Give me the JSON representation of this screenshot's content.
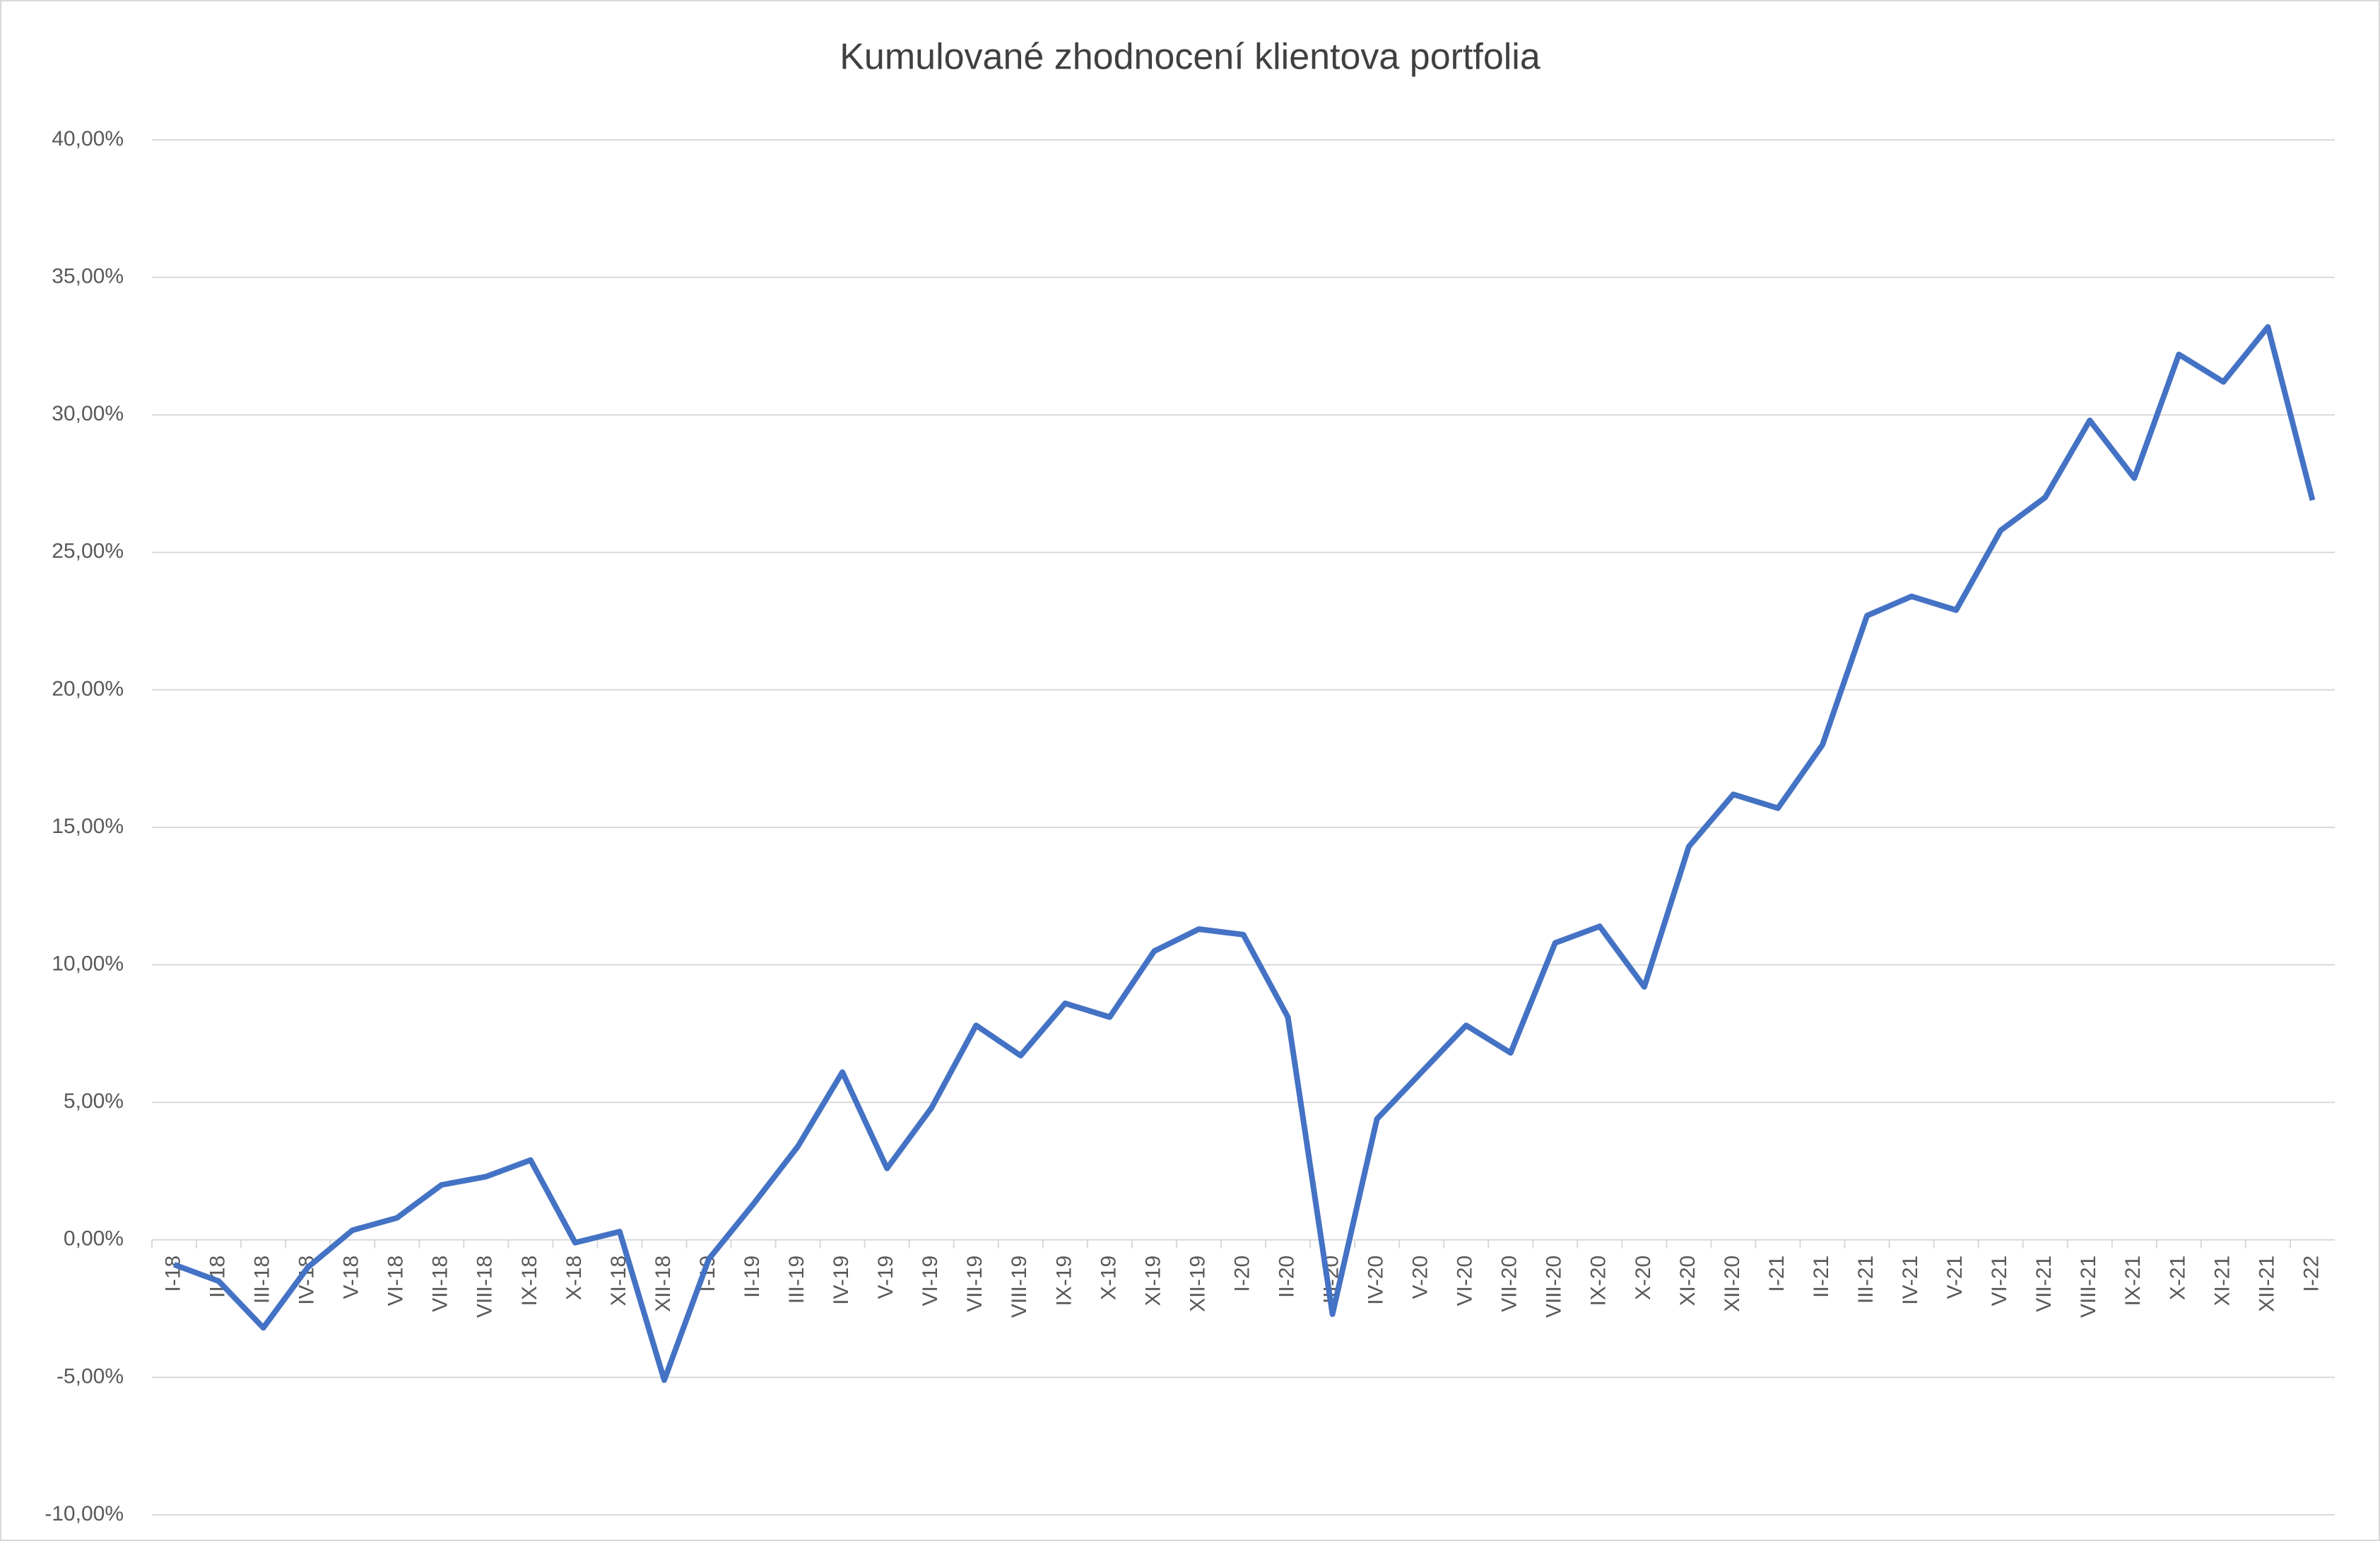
{
  "chart_data": {
    "type": "line",
    "title": "Kumulované zhodnocení klientova portfolia",
    "categories": [
      "I-18",
      "II-18",
      "III-18",
      "IV-18",
      "V-18",
      "VI-18",
      "VII-18",
      "VIII-18",
      "IX-18",
      "X-18",
      "XI-18",
      "XII-18",
      "I-19",
      "II-19",
      "III-19",
      "IV-19",
      "V-19",
      "VI-19",
      "VII-19",
      "VIII-19",
      "IX-19",
      "X-19",
      "XI-19",
      "XII-19",
      "I-20",
      "II-20",
      "III-20",
      "IV-20",
      "V-20",
      "VI-20",
      "VII-20",
      "VIII-20",
      "IX-20",
      "X-20",
      "XI-20",
      "XII-20",
      "I-21",
      "II-21",
      "III-21",
      "IV-21",
      "V-21",
      "VI-21",
      "VII-21",
      "VIII-21",
      "IX-21",
      "X-21",
      "XI-21",
      "XII-21",
      "I-22"
    ],
    "values": [
      -0.9,
      -1.5,
      -3.2,
      -1.0,
      0.35,
      0.8,
      2.0,
      2.3,
      2.9,
      -0.1,
      0.3,
      -5.1,
      -0.7,
      1.3,
      3.4,
      6.1,
      2.6,
      4.8,
      7.8,
      6.7,
      8.6,
      8.1,
      10.5,
      11.3,
      11.1,
      8.1,
      -2.7,
      4.4,
      6.1,
      7.8,
      6.8,
      10.8,
      11.4,
      9.2,
      14.3,
      16.2,
      15.7,
      18.0,
      22.7,
      23.4,
      22.9,
      25.8,
      27.0,
      29.8,
      27.7,
      32.2,
      31.2,
      33.2,
      26.9
    ],
    "color": "#4472c4",
    "ylim": [
      -10,
      40
    ],
    "yticks": [
      {
        "value": -10,
        "label": "-10,00%"
      },
      {
        "value": -5,
        "label": "-5,00%"
      },
      {
        "value": 0,
        "label": "0,00%"
      },
      {
        "value": 5,
        "label": "5,00%"
      },
      {
        "value": 10,
        "label": "10,00%"
      },
      {
        "value": 15,
        "label": "15,00%"
      },
      {
        "value": 20,
        "label": "20,00%"
      },
      {
        "value": 25,
        "label": "25,00%"
      },
      {
        "value": 30,
        "label": "30,00%"
      },
      {
        "value": 35,
        "label": "35,00%"
      },
      {
        "value": 40,
        "label": "40,00%"
      }
    ],
    "grid": true
  }
}
